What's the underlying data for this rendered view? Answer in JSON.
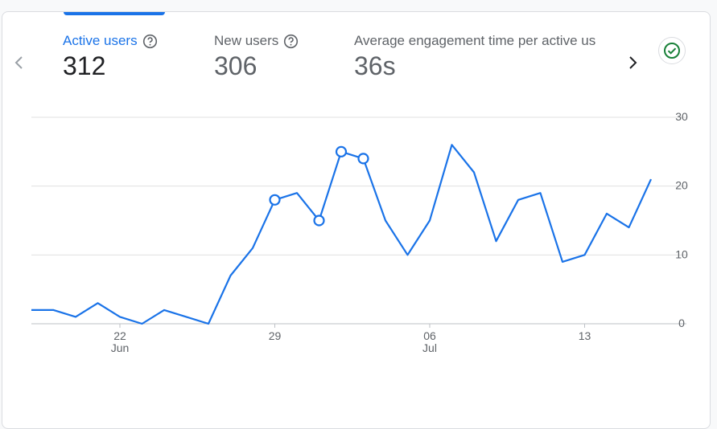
{
  "metrics": [
    {
      "label": "Active users",
      "value": "312"
    },
    {
      "label": "New users",
      "value": "306"
    },
    {
      "label": "Average engagement time per active us",
      "value": "36s"
    }
  ],
  "icons": {
    "help": "help-circle-icon",
    "prev": "chevron-left-icon",
    "next": "chevron-right-icon",
    "status": "check-circle-icon"
  },
  "colors": {
    "accent": "#1a73e8",
    "status": "#188038",
    "grid": "#e0e0e0"
  },
  "chart_data": {
    "type": "line",
    "ylim": [
      0,
      30
    ],
    "y_ticks": [
      "30",
      "20",
      "10",
      "0"
    ],
    "x_tick_labels": [
      {
        "day": "22",
        "month": "Jun",
        "index": 4
      },
      {
        "day": "29",
        "month": "",
        "index": 11
      },
      {
        "day": "06",
        "month": "Jul",
        "index": 18
      },
      {
        "day": "13",
        "month": "",
        "index": 25
      }
    ],
    "series": [
      {
        "values": [
          2,
          2,
          1,
          3,
          1,
          0,
          2,
          1,
          0,
          7,
          11,
          18,
          19,
          15,
          25,
          24,
          15,
          10,
          15,
          26,
          22,
          12,
          18,
          19,
          9,
          10,
          16,
          14,
          21
        ],
        "marker_indices": [
          11,
          13,
          14,
          15
        ]
      }
    ],
    "grid": true
  }
}
